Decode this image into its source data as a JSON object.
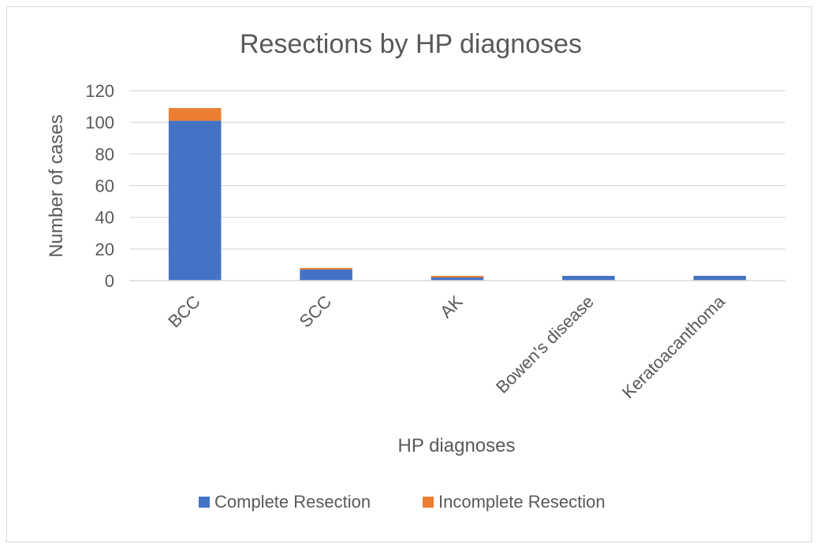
{
  "chart_data": {
    "type": "bar",
    "stacked": true,
    "title": "Resections by HP diagnoses",
    "xlabel": "HP diagnoses",
    "ylabel": "Number of cases",
    "categories": [
      "BCC",
      "SCC",
      "AK",
      "Bowen's disease",
      "Keratoacanthoma"
    ],
    "series": [
      {
        "name": "Complete Resection",
        "values": [
          101,
          7,
          2,
          3,
          3
        ],
        "color": "#4472c4"
      },
      {
        "name": "Incomplete Resection",
        "values": [
          8,
          1,
          1,
          0,
          0
        ],
        "color": "#ed7d31"
      }
    ],
    "ylim": [
      0,
      120
    ],
    "yticks": [
      "0",
      "20",
      "40",
      "60",
      "80",
      "100",
      "120"
    ],
    "grid": true,
    "legend_position": "bottom"
  }
}
